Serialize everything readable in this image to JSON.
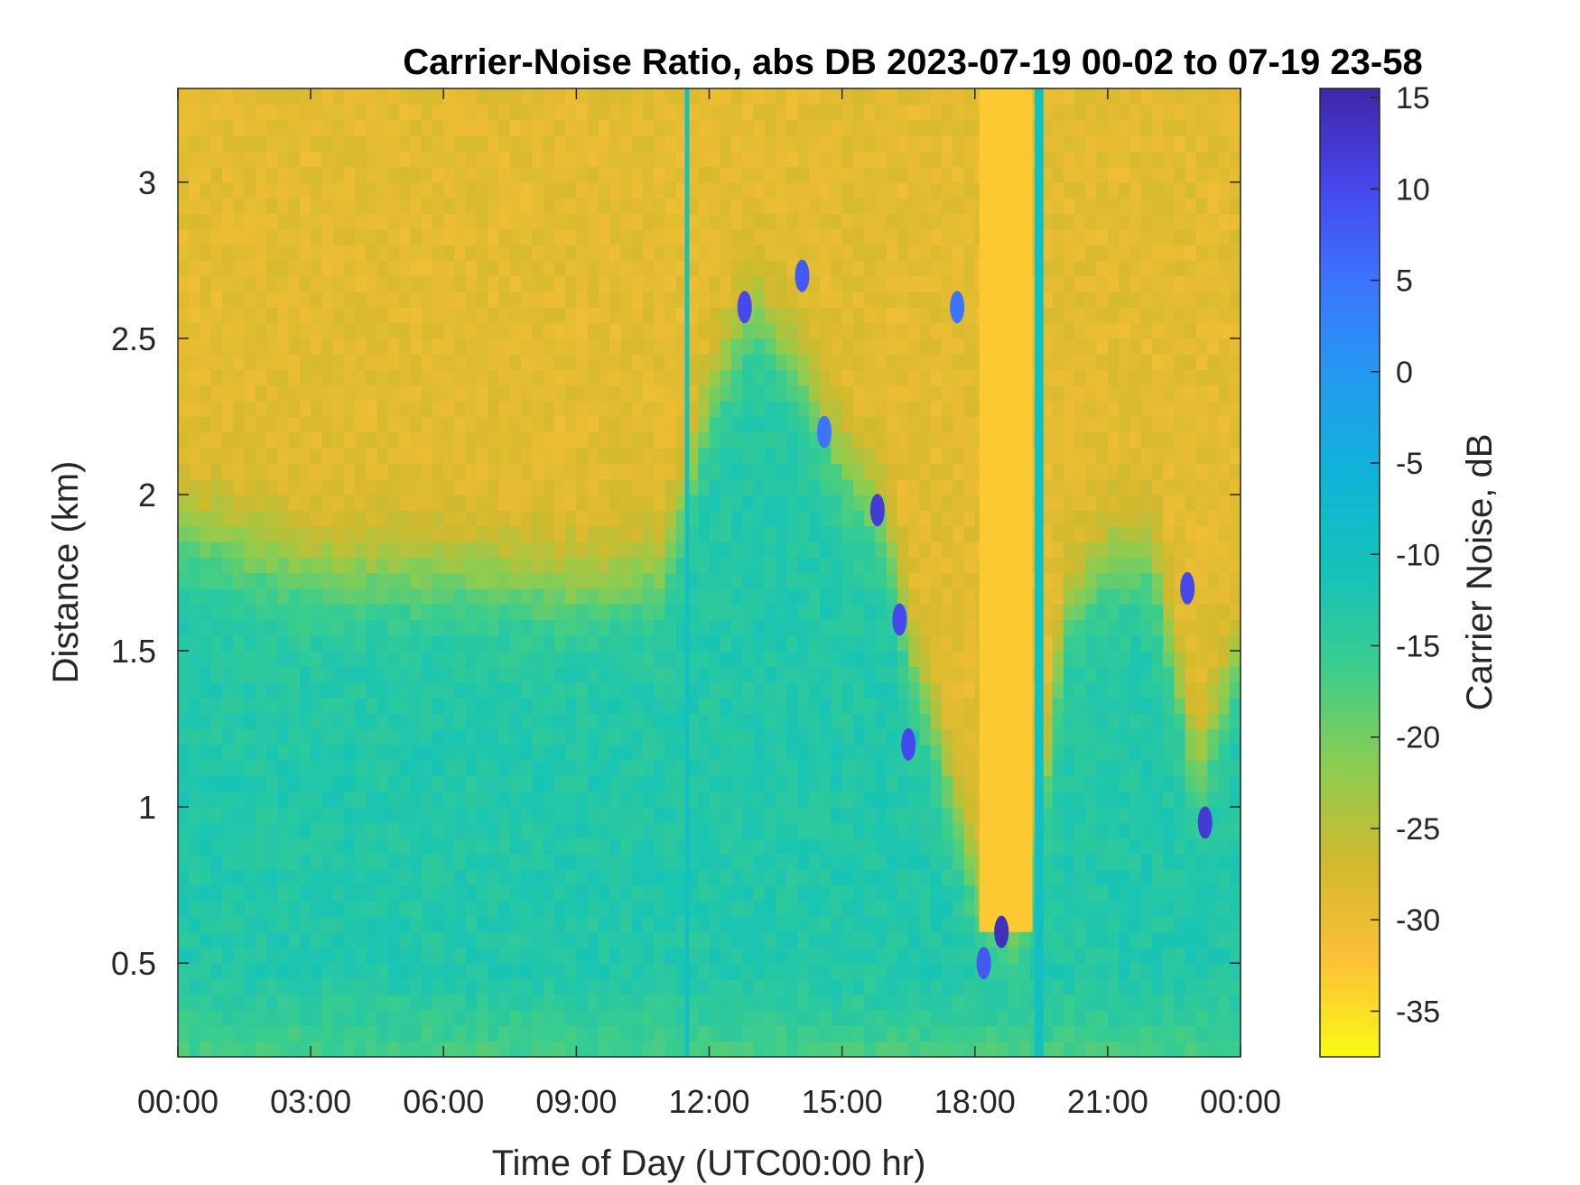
{
  "chart_data": {
    "type": "heatmap",
    "title": "Carrier-Noise Ratio, abs DB 2023-07-19 00-02 to 07-19 23-58",
    "xlabel": "Time of Day (UTC00:00 hr)",
    "ylabel": "Distance (km)",
    "colorbar_label": "Carrier Noise, dB",
    "colormap": "parula",
    "colormap_reversed": true,
    "x_unit": "hours UTC",
    "xlim": [
      0,
      24
    ],
    "ylim": [
      0.2,
      3.3
    ],
    "clim": [
      -37.5,
      15.5
    ],
    "x_ticks": [
      0,
      3,
      6,
      9,
      12,
      15,
      18,
      21,
      24
    ],
    "x_tick_labels": [
      "00:00",
      "03:00",
      "06:00",
      "09:00",
      "12:00",
      "15:00",
      "18:00",
      "21:00",
      "00:00"
    ],
    "y_ticks": [
      0.5,
      1,
      1.5,
      2,
      2.5,
      3
    ],
    "y_tick_labels": [
      "0.5",
      "1",
      "1.5",
      "2",
      "2.5",
      "3"
    ],
    "colorbar_ticks": [
      15,
      10,
      5,
      0,
      -5,
      -10,
      -15,
      -20,
      -25,
      -30,
      -35
    ],
    "colorbar_tick_labels": [
      "15",
      "10",
      "5",
      "0",
      "-5",
      "-10",
      "-15",
      "-20",
      "-25",
      "-30",
      "-35"
    ],
    "field": {
      "boundary_level_km": [
        [
          0,
          1.9
        ],
        [
          3,
          1.75
        ],
        [
          6,
          1.75
        ],
        [
          9,
          1.7
        ],
        [
          11,
          1.75
        ],
        [
          12,
          2.3
        ],
        [
          13,
          2.6
        ],
        [
          14,
          2.4
        ],
        [
          15,
          2.1
        ],
        [
          16,
          1.9
        ],
        [
          16.5,
          1.5
        ],
        [
          17,
          1.3
        ],
        [
          18,
          0.75
        ],
        [
          19,
          0.6
        ],
        [
          19.5,
          0.95
        ],
        [
          20,
          1.6
        ],
        [
          21,
          1.8
        ],
        [
          22,
          1.8
        ],
        [
          23,
          1.1
        ],
        [
          24,
          1.5
        ]
      ],
      "upper_value_db": -29,
      "lower_value_db": -13,
      "lowest_layer_value_db": -17,
      "clear_air_value_db": -32
    },
    "highlights": [
      {
        "x_range": [
          18.1,
          19.3
        ],
        "y_range": [
          0.6,
          3.3
        ],
        "value_db": -33
      },
      {
        "x_range": [
          11.45,
          11.55
        ],
        "y_range": [
          0.2,
          3.3
        ],
        "value_db": -10
      },
      {
        "x_range": [
          19.35,
          19.55
        ],
        "y_range": [
          0.2,
          3.3
        ],
        "value_db": -10
      }
    ],
    "strong_returns": [
      {
        "x": 12.8,
        "y": 2.6,
        "value_db": 10
      },
      {
        "x": 14.1,
        "y": 2.7,
        "value_db": 8
      },
      {
        "x": 14.6,
        "y": 2.2,
        "value_db": 5
      },
      {
        "x": 15.8,
        "y": 1.95,
        "value_db": 12
      },
      {
        "x": 16.3,
        "y": 1.6,
        "value_db": 10
      },
      {
        "x": 16.5,
        "y": 1.2,
        "value_db": 10
      },
      {
        "x": 17.6,
        "y": 2.6,
        "value_db": 5
      },
      {
        "x": 18.6,
        "y": 0.6,
        "value_db": 14
      },
      {
        "x": 18.2,
        "y": 0.5,
        "value_db": 8
      },
      {
        "x": 22.8,
        "y": 1.7,
        "value_db": 10
      },
      {
        "x": 23.2,
        "y": 0.95,
        "value_db": 12
      }
    ]
  }
}
